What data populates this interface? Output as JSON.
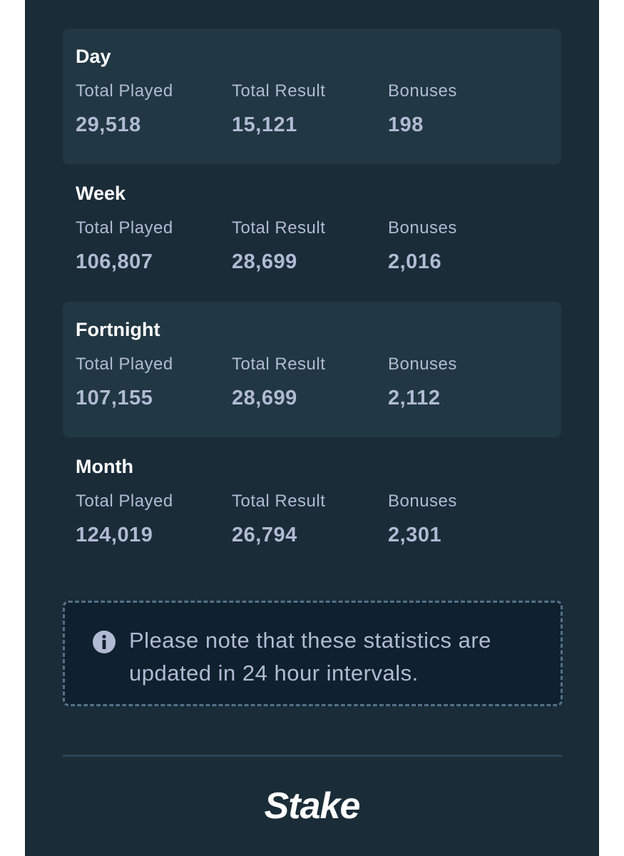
{
  "periods": [
    {
      "title": "Day",
      "stats": [
        {
          "label": "Total Played",
          "value": "29,518"
        },
        {
          "label": "Total Result",
          "value": "15,121"
        },
        {
          "label": "Bonuses",
          "value": "198"
        }
      ]
    },
    {
      "title": "Week",
      "stats": [
        {
          "label": "Total Played",
          "value": "106,807"
        },
        {
          "label": "Total Result",
          "value": "28,699"
        },
        {
          "label": "Bonuses",
          "value": "2,016"
        }
      ]
    },
    {
      "title": "Fortnight",
      "stats": [
        {
          "label": "Total Played",
          "value": "107,155"
        },
        {
          "label": "Total Result",
          "value": "28,699"
        },
        {
          "label": "Bonuses",
          "value": "2,112"
        }
      ]
    },
    {
      "title": "Month",
      "stats": [
        {
          "label": "Total Played",
          "value": "124,019"
        },
        {
          "label": "Total Result",
          "value": "26,794"
        },
        {
          "label": "Bonuses",
          "value": "2,301"
        }
      ]
    }
  ],
  "note": "Please note that these statistics are updated in 24 hour intervals.",
  "logo": "Stake"
}
